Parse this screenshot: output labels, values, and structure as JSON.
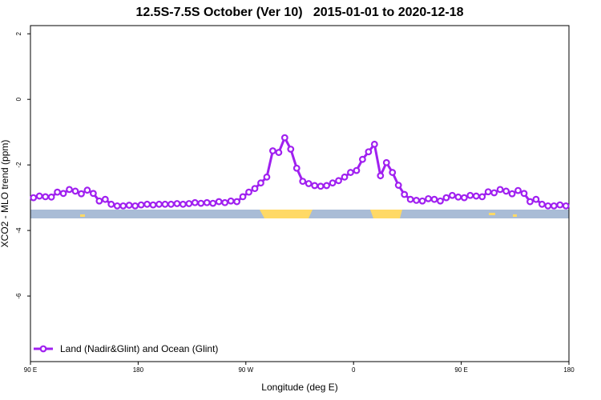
{
  "chart_data": {
    "type": "line",
    "title": "12.5S-7.5S October (Ver 10)   2015-01-01 to 2020-12-18",
    "x_label": "Longitude (deg E)",
    "y_label": "XCO2 - MLO trend (ppm)",
    "xlim": [
      90,
      540
    ],
    "xticks": [
      {
        "value": 90,
        "label": "90 E"
      },
      180,
      {
        "value": 270,
        "label": "90 W"
      },
      {
        "value": 360,
        "label": "0"
      },
      {
        "value": 450,
        "label": "90 E"
      },
      180.0001
    ],
    "ylim": [
      -8,
      2.25
    ],
    "yticks": [
      -6,
      -4,
      -2,
      0,
      2
    ],
    "legend_position": "bottom-left",
    "x": [
      92.5,
      97.5,
      102.5,
      107.5,
      112.5,
      117.5,
      122.5,
      127.5,
      132.5,
      137.5,
      142.5,
      147.5,
      152.5,
      157.5,
      162.5,
      167.5,
      172.5,
      177.5,
      182.5,
      187.5,
      192.5,
      197.5,
      202.5,
      207.5,
      212.5,
      217.5,
      222.5,
      227.5,
      232.5,
      237.5,
      242.5,
      247.5,
      252.5,
      257.5,
      262.5,
      267.5,
      272.5,
      277.5,
      282.5,
      287.5,
      292.5,
      297.5,
      302.5,
      307.5,
      312.5,
      317.5,
      322.5,
      327.5,
      332.5,
      337.5,
      342.5,
      347.5,
      352.5,
      357.5,
      362.5,
      367.5,
      372.5,
      377.5,
      382.5,
      387.5,
      392.5,
      397.5,
      402.5,
      407.5,
      412.5,
      417.5,
      422.5,
      427.5,
      432.5,
      437.5,
      442.5,
      447.5,
      452.5,
      457.5,
      462.5,
      467.5,
      472.5,
      477.5,
      482.5,
      487.5,
      492.5,
      497.5,
      502.5,
      507.5,
      512.5,
      517.5,
      522.5,
      527.5,
      532.5,
      537.5
    ],
    "series": [
      {
        "name": "Land (Nadir&Glint) and Ocean (Glint)",
        "color": "#a020f0",
        "values": [
          -3.0,
          -2.95,
          -2.97,
          -2.98,
          -2.83,
          -2.87,
          -2.75,
          -2.8,
          -2.88,
          -2.77,
          -2.87,
          -3.1,
          -3.05,
          -3.2,
          -3.25,
          -3.25,
          -3.23,
          -3.25,
          -3.22,
          -3.2,
          -3.22,
          -3.2,
          -3.2,
          -3.2,
          -3.18,
          -3.2,
          -3.18,
          -3.15,
          -3.17,
          -3.15,
          -3.17,
          -3.12,
          -3.15,
          -3.1,
          -3.12,
          -2.97,
          -2.83,
          -2.72,
          -2.55,
          -2.37,
          -1.57,
          -1.62,
          -1.17,
          -1.52,
          -2.1,
          -2.5,
          -2.57,
          -2.63,
          -2.65,
          -2.63,
          -2.55,
          -2.48,
          -2.37,
          -2.23,
          -2.17,
          -1.83,
          -1.6,
          -1.37,
          -2.33,
          -1.93,
          -2.23,
          -2.62,
          -2.9,
          -3.05,
          -3.08,
          -3.1,
          -3.03,
          -3.05,
          -3.1,
          -3.0,
          -2.93,
          -2.98,
          -3.0,
          -2.93,
          -2.95,
          -2.97,
          -2.82,
          -2.85,
          -2.75,
          -2.8,
          -2.88,
          -2.78,
          -2.87,
          -3.12,
          -3.05,
          -3.2,
          -3.25,
          -3.25,
          -3.22,
          -3.25
        ]
      }
    ]
  }
}
